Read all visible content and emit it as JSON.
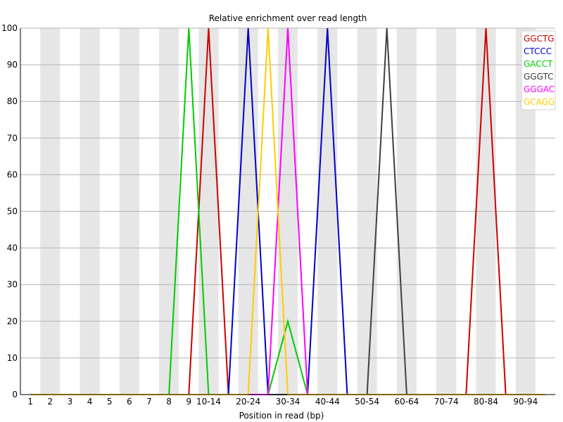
{
  "chart_data": {
    "type": "line",
    "title": "Relative enrichment over read length",
    "xlabel": "Position in read (bp)",
    "ylabel": "",
    "ylim": [
      0,
      100
    ],
    "yticks": [
      0,
      10,
      20,
      30,
      40,
      50,
      60,
      70,
      80,
      90,
      100
    ],
    "grid": true,
    "legend_position": "top-right",
    "categories": [
      "1",
      "2",
      "3",
      "4",
      "5",
      "6",
      "7",
      "8",
      "9",
      "10-14",
      "15-19",
      "20-24",
      "25-29",
      "30-34",
      "35-39",
      "40-44",
      "45-49",
      "50-54",
      "55-59",
      "60-64",
      "65-69",
      "70-74",
      "75-79",
      "80-84",
      "85-89",
      "90-94",
      "95-99"
    ],
    "tick_labels": [
      "1",
      "2",
      "3",
      "4",
      "5",
      "6",
      "7",
      "8",
      "9",
      "10-14",
      "",
      "20-24",
      "",
      "30-34",
      "",
      "40-44",
      "",
      "50-54",
      "",
      "60-64",
      "",
      "70-74",
      "",
      "80-84",
      "",
      "90-94",
      ""
    ],
    "series": [
      {
        "name": "GGCTG",
        "color": "#cc0000",
        "values": [
          0,
          0,
          0,
          0,
          0,
          0,
          0,
          0,
          0,
          100,
          0,
          0,
          0,
          0,
          0,
          0,
          0,
          0,
          0,
          0,
          0,
          0,
          0,
          100,
          0,
          0,
          0
        ]
      },
      {
        "name": "CTCCC",
        "color": "#0000cc",
        "values": [
          0,
          0,
          0,
          0,
          0,
          0,
          0,
          0,
          0,
          0,
          0,
          100,
          0,
          0,
          0,
          100,
          0,
          0,
          0,
          0,
          0,
          0,
          0,
          0,
          0,
          0,
          0
        ]
      },
      {
        "name": "GACCT",
        "color": "#00cc00",
        "values": [
          0,
          0,
          0,
          0,
          0,
          0,
          0,
          0,
          100,
          0,
          0,
          0,
          0,
          20,
          0,
          0,
          0,
          0,
          0,
          0,
          0,
          0,
          0,
          0,
          0,
          0,
          0
        ]
      },
      {
        "name": "GGGTC",
        "color": "#404040",
        "values": [
          0,
          0,
          0,
          0,
          0,
          0,
          0,
          0,
          0,
          0,
          0,
          0,
          0,
          0,
          0,
          0,
          0,
          0,
          100,
          0,
          0,
          0,
          0,
          0,
          0,
          0,
          0
        ]
      },
      {
        "name": "GGGAC",
        "color": "#ff00ff",
        "values": [
          0,
          0,
          0,
          0,
          0,
          0,
          0,
          0,
          0,
          0,
          0,
          0,
          0,
          100,
          0,
          0,
          0,
          0,
          0,
          0,
          0,
          0,
          0,
          0,
          0,
          0,
          0
        ]
      },
      {
        "name": "GCAGG",
        "color": "#ffcc00",
        "values": [
          0,
          0,
          0,
          0,
          0,
          0,
          0,
          0,
          0,
          0,
          0,
          0,
          100,
          0,
          0,
          0,
          0,
          0,
          0,
          0,
          0,
          0,
          0,
          0,
          0,
          0,
          0
        ]
      }
    ]
  }
}
